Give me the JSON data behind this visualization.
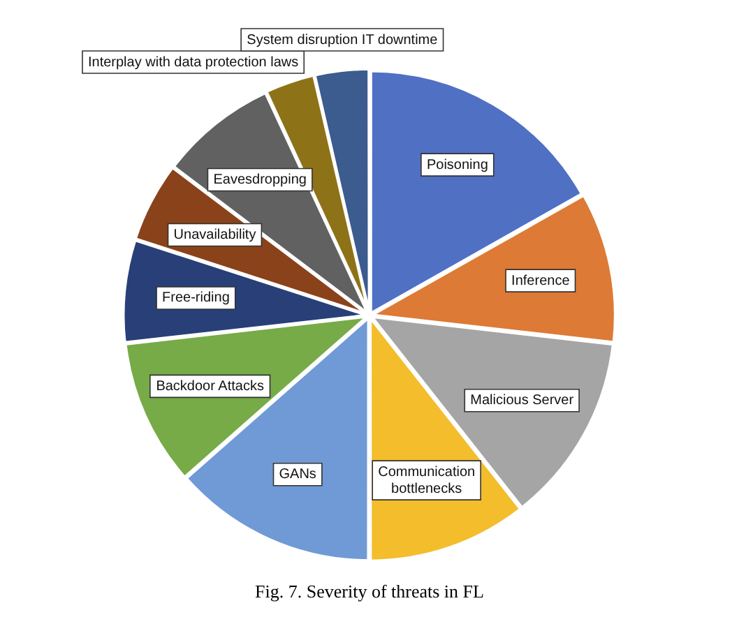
{
  "chart_data": {
    "type": "pie",
    "title": "Fig. 7. Severity of threats in FL",
    "categories": [
      "Poisoning",
      "Inference",
      "Malicious Server",
      "Communication bottlenecks",
      "GANs",
      "Backdoor Attacks",
      "Free-riding",
      "Unavailability",
      "Eavesdropping",
      "Interplay with data protection laws",
      "System disruption IT downtime"
    ],
    "values": [
      16.8,
      10,
      12.6,
      10.6,
      13.5,
      9.7,
      6.8,
      5.3,
      7.8,
      3.3,
      3.6
    ],
    "colors": [
      "#5070c4",
      "#dd7a35",
      "#a5a5a5",
      "#f3bd2c",
      "#6f9ad6",
      "#76ab47",
      "#283f78",
      "#8a421a",
      "#616161",
      "#8e7218",
      "#3c5b8e"
    ],
    "legend": false
  }
}
